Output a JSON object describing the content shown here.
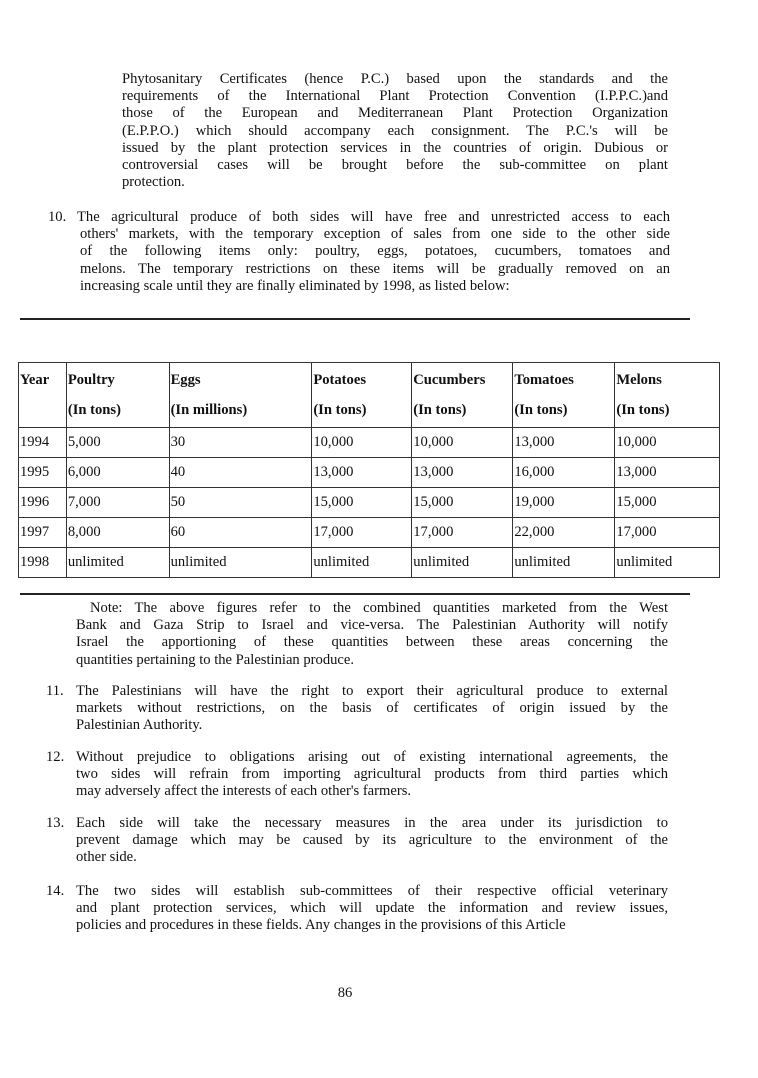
{
  "intro_paragraph": {
    "lines": [
      "Phytosanitary  Certificates (hence P.C.) based upon the standards and the",
      "requirements of the International Plant Protection Convention (I.P.P.C.)and",
      "those  of  the  European  and Mediterranean Plant Protection Organization",
      "(E.P.P.O.) which should accompany each consignment. The P.C.'s will be",
      "issued by the plant protection services in the countries of origin. Dubious or",
      "controversial  cases  will  be  brought  before  the sub-committee on plant",
      "protection."
    ]
  },
  "item_10": {
    "number": "10.",
    "lines": [
      "The agricultural  produce of both sides will have free and unrestricted access to each",
      "others'  markets, with the temporary exception of sales from one side to the other side",
      "of  the  following items only: poultry, eggs, potatoes, cucumbers, tomatoes and",
      "melons. The temporary restrictions on these items will be gradually removed on an",
      "increasing scale until they are finally eliminated by 1998, as listed below:"
    ]
  },
  "table": {
    "headers": [
      {
        "name": "Year",
        "unit": ""
      },
      {
        "name": "Poultry",
        "unit": "(In tons)"
      },
      {
        "name": "Eggs",
        "unit": "(In millions)"
      },
      {
        "name": "Potatoes",
        "unit": "(In tons)"
      },
      {
        "name": "Cucumbers",
        "unit": "(In tons)"
      },
      {
        "name": "Tomatoes",
        "unit": "(In tons)"
      },
      {
        "name": "Melons",
        "unit": "(In tons)"
      }
    ],
    "rows": [
      [
        "1994",
        "5,000",
        "30",
        "10,000",
        "10,000",
        "13,000",
        "10,000"
      ],
      [
        "1995",
        "6,000",
        "40",
        "13,000",
        "13,000",
        "16,000",
        "13,000"
      ],
      [
        "1996",
        "7,000",
        "50",
        "15,000",
        "15,000",
        "19,000",
        "15,000"
      ],
      [
        "1997",
        "8,000",
        "60",
        "17,000",
        "17,000",
        "22,000",
        "17,000"
      ],
      [
        "1998",
        "unlimited",
        "unlimited",
        "unlimited",
        "unlimited",
        "unlimited",
        "unlimited"
      ]
    ]
  },
  "note": {
    "lines": [
      "Note: The above figures refer to the combined quantities marketed from the West",
      "Bank and Gaza Strip to Israel and vice-versa. The Palestinian Authority will notify",
      "Israel  the  apportioning  of  these quantities between these areas concerning the",
      "quantities pertaining to the Palestinian produce."
    ]
  },
  "item_11": {
    "number": "11.",
    "lines": [
      "The Palestinians will have the right to export their agricultural produce to external",
      "markets without restrictions, on the basis of certificates of origin issued by the",
      "Palestinian Authority."
    ]
  },
  "item_12": {
    "number": "12.",
    "lines": [
      "Without prejudice to obligations arising out of existing international agreements, the",
      "two sides will refrain from importing agricultural products from third parties which",
      "may adversely affect the interests of each other's farmers."
    ]
  },
  "item_13": {
    "number": "13.",
    "lines": [
      "Each side will take the necessary measures in the area under its jurisdiction to",
      "prevent damage which may be caused by its agriculture to the environment of the",
      "other side."
    ]
  },
  "item_14": {
    "number": "14.",
    "lines": [
      "The two sides will establish sub-committees of their respective official veterinary",
      "and plant protection services, which will update the information and review issues,",
      "policies and procedures in these fields. Any changes in the provisions of this Article"
    ]
  },
  "page_number": "86"
}
